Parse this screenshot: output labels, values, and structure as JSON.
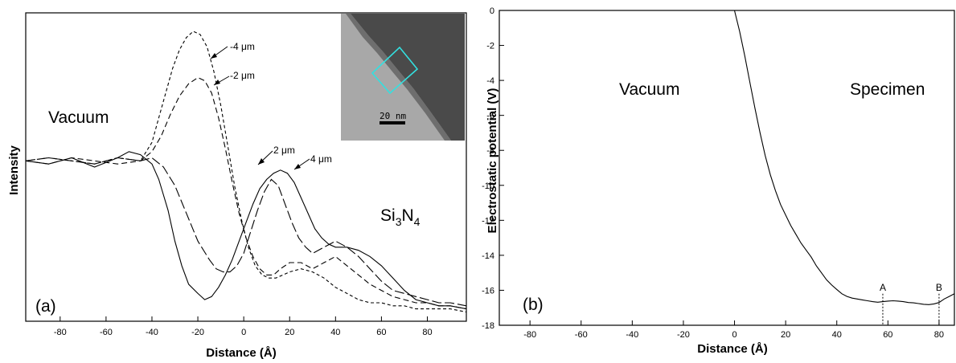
{
  "chart_data": [
    {
      "panel": "(a)",
      "type": "line",
      "xlabel": "Distance (Å)",
      "ylabel": "Intensity",
      "xlim": [
        -95,
        97
      ],
      "xticks": [
        -80,
        -60,
        -40,
        -20,
        0,
        20,
        40,
        60,
        80
      ],
      "annotations": {
        "vacuum": "Vacuum",
        "material_main": "Si",
        "material_sub1": "3",
        "material_mid": "N",
        "material_sub2": "4",
        "panel_label": "(a)",
        "scale_bar": "20 nm"
      },
      "series": [
        {
          "name": "4 μm",
          "style": "solid",
          "x": [
            -95,
            -85,
            -75,
            -65,
            -55,
            -50,
            -45,
            -40,
            -37,
            -33,
            -30,
            -27,
            -24,
            -20,
            -17,
            -14,
            -11,
            -8,
            -5,
            -2,
            1,
            4,
            7,
            10,
            13,
            16,
            19,
            22,
            25,
            28,
            31,
            34,
            37,
            40,
            45,
            50,
            55,
            60,
            65,
            70,
            75,
            80,
            85,
            90,
            97
          ],
          "y": [
            0.52,
            0.51,
            0.53,
            0.5,
            0.53,
            0.55,
            0.54,
            0.51,
            0.46,
            0.36,
            0.26,
            0.18,
            0.12,
            0.09,
            0.07,
            0.08,
            0.11,
            0.15,
            0.2,
            0.26,
            0.32,
            0.38,
            0.43,
            0.46,
            0.48,
            0.49,
            0.48,
            0.45,
            0.4,
            0.35,
            0.3,
            0.27,
            0.25,
            0.24,
            0.24,
            0.23,
            0.21,
            0.18,
            0.14,
            0.1,
            0.07,
            0.06,
            0.05,
            0.05,
            0.04
          ]
        },
        {
          "name": "2 μm",
          "style": "long-dash",
          "x": [
            -95,
            -85,
            -75,
            -65,
            -55,
            -45,
            -40,
            -35,
            -30,
            -25,
            -20,
            -15,
            -12,
            -9,
            -6,
            -3,
            0,
            3,
            6,
            9,
            12,
            15,
            18,
            21,
            24,
            27,
            30,
            35,
            40,
            45,
            50,
            55,
            60,
            65,
            70,
            75,
            80,
            85,
            90,
            97
          ],
          "y": [
            0.52,
            0.53,
            0.52,
            0.51,
            0.53,
            0.52,
            0.53,
            0.5,
            0.44,
            0.35,
            0.26,
            0.2,
            0.17,
            0.16,
            0.16,
            0.18,
            0.22,
            0.29,
            0.36,
            0.42,
            0.46,
            0.44,
            0.38,
            0.32,
            0.27,
            0.24,
            0.22,
            0.24,
            0.26,
            0.24,
            0.21,
            0.17,
            0.13,
            0.1,
            0.09,
            0.08,
            0.07,
            0.06,
            0.06,
            0.05
          ]
        },
        {
          "name": "-2 μm",
          "style": "medium-dash",
          "x": [
            -95,
            -85,
            -75,
            -65,
            -55,
            -45,
            -40,
            -36,
            -32,
            -28,
            -24,
            -20,
            -17,
            -14,
            -11,
            -8,
            -5,
            -2,
            1,
            4,
            7,
            10,
            13,
            16,
            20,
            25,
            30,
            35,
            40,
            45,
            50,
            55,
            60,
            65,
            70,
            75,
            80,
            85,
            90,
            97
          ],
          "y": [
            0.52,
            0.51,
            0.53,
            0.52,
            0.51,
            0.52,
            0.55,
            0.6,
            0.67,
            0.73,
            0.77,
            0.79,
            0.78,
            0.74,
            0.66,
            0.56,
            0.45,
            0.35,
            0.27,
            0.21,
            0.17,
            0.15,
            0.15,
            0.17,
            0.19,
            0.19,
            0.17,
            0.19,
            0.21,
            0.18,
            0.15,
            0.12,
            0.1,
            0.08,
            0.07,
            0.06,
            0.06,
            0.05,
            0.05,
            0.04
          ]
        },
        {
          "name": "-4 μm",
          "style": "short-dash",
          "x": [
            -95,
            -85,
            -75,
            -65,
            -55,
            -45,
            -40,
            -37,
            -34,
            -31,
            -28,
            -25,
            -22,
            -19,
            -16,
            -13,
            -10,
            -7,
            -4,
            -1,
            2,
            5,
            8,
            11,
            14,
            17,
            20,
            25,
            30,
            35,
            40,
            45,
            50,
            55,
            60,
            65,
            70,
            75,
            80,
            85,
            90,
            97
          ],
          "y": [
            0.52,
            0.53,
            0.52,
            0.51,
            0.53,
            0.52,
            0.58,
            0.66,
            0.74,
            0.82,
            0.88,
            0.92,
            0.94,
            0.93,
            0.89,
            0.81,
            0.7,
            0.57,
            0.44,
            0.33,
            0.24,
            0.18,
            0.15,
            0.14,
            0.14,
            0.15,
            0.16,
            0.17,
            0.16,
            0.14,
            0.11,
            0.09,
            0.07,
            0.06,
            0.06,
            0.05,
            0.05,
            0.04,
            0.04,
            0.04,
            0.04,
            0.03
          ]
        }
      ]
    },
    {
      "panel": "(b)",
      "type": "line",
      "xlabel": "Distance (Å)",
      "ylabel": "Electrostatic potential (V)",
      "xlim": [
        -92,
        86
      ],
      "ylim": [
        -18,
        0
      ],
      "xticks": [
        -80,
        -60,
        -40,
        -20,
        0,
        20,
        40,
        60,
        80
      ],
      "yticks": [
        0,
        -2,
        -4,
        -6,
        -8,
        -10,
        -12,
        -14,
        -16,
        -18
      ],
      "annotations": {
        "vacuum": "Vacuum",
        "specimen": "Specimen",
        "panel_label": "(b)",
        "marker_a": "A",
        "marker_b": "B"
      },
      "markers": [
        {
          "label": "A",
          "x": 58
        },
        {
          "label": "B",
          "x": 80
        }
      ],
      "series": [
        {
          "x": [
            0,
            2,
            4,
            6,
            8,
            10,
            12,
            14,
            16,
            18,
            20,
            22,
            24,
            26,
            28,
            30,
            32,
            34,
            36,
            38,
            40,
            42,
            44,
            46,
            48,
            50,
            52,
            54,
            56,
            58,
            60,
            62,
            64,
            66,
            68,
            70,
            72,
            74,
            76,
            78,
            80,
            82,
            84,
            86
          ],
          "y": [
            0,
            -1.2,
            -2.6,
            -4.1,
            -5.6,
            -7.0,
            -8.3,
            -9.4,
            -10.3,
            -11.1,
            -11.7,
            -12.3,
            -12.8,
            -13.3,
            -13.7,
            -14.1,
            -14.6,
            -15.0,
            -15.4,
            -15.7,
            -15.95,
            -16.2,
            -16.35,
            -16.45,
            -16.5,
            -16.55,
            -16.6,
            -16.65,
            -16.68,
            -16.65,
            -16.62,
            -16.6,
            -16.62,
            -16.65,
            -16.7,
            -16.72,
            -16.76,
            -16.8,
            -16.82,
            -16.78,
            -16.7,
            -16.5,
            -16.35,
            -16.2
          ]
        }
      ]
    }
  ]
}
